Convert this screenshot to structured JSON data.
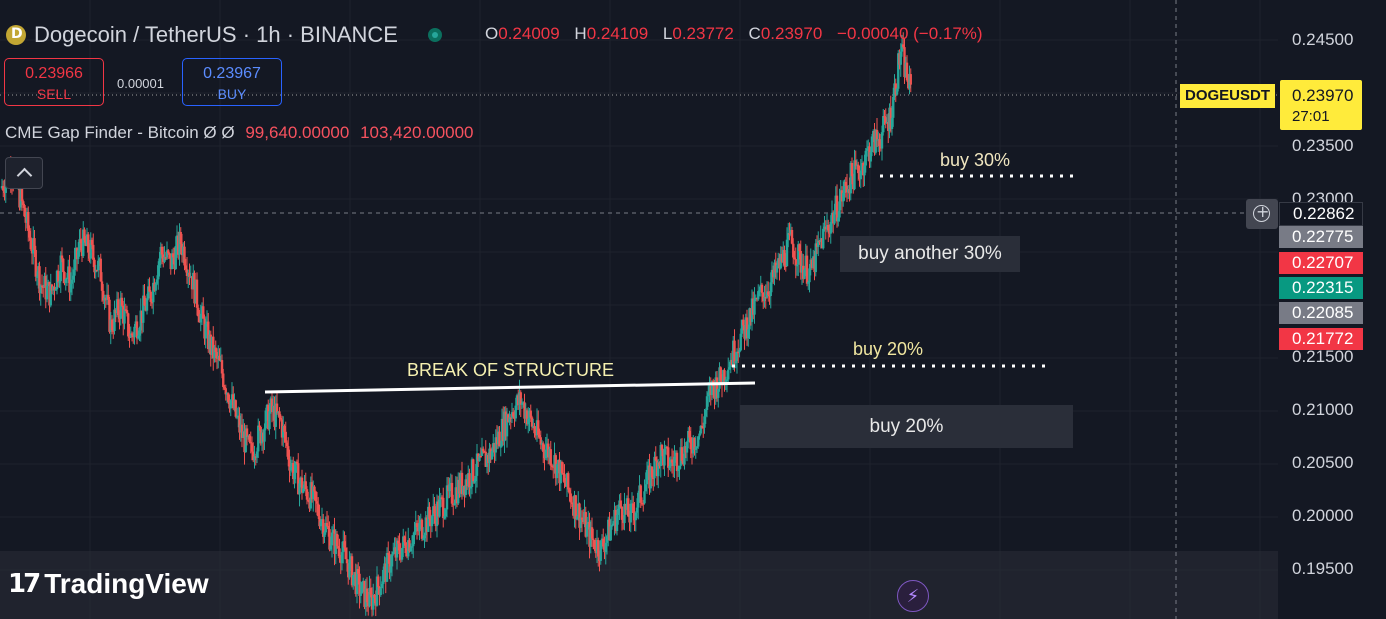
{
  "header": {
    "symbol_title": "Dogecoin / TetherUS · 1h · BINANCE",
    "coin_icon": "dogecoin-icon",
    "ohlc": [
      {
        "key": "O",
        "value": "0.24009"
      },
      {
        "key": "H",
        "value": "0.24109"
      },
      {
        "key": "L",
        "value": "0.23772"
      },
      {
        "key": "C",
        "value": "0.23970"
      },
      {
        "key": "",
        "value": "−0.00040 (−0.17%)"
      }
    ]
  },
  "trade": {
    "sell_price": "0.23966",
    "sell_label": "SELL",
    "spread": "0.00001",
    "buy_price": "0.23967",
    "buy_label": "BUY"
  },
  "indicator": {
    "name": "CME Gap Finder - Bitcoin",
    "settings": "Ø Ø",
    "value1": "99,640.00000",
    "value2": "103,420.00000"
  },
  "annotations": {
    "buy30": "buy 30%",
    "buy_another": "buy another 30%",
    "buy20_upper": "buy 20%",
    "bos": "BREAK OF STRUCTURE",
    "buy20_zone": "buy 20%"
  },
  "price_axis": {
    "ticks": [
      "0.24500",
      "0.23500",
      "0.23000",
      "0.21500",
      "0.21000",
      "0.20500",
      "0.20000",
      "0.19500"
    ],
    "ticker_label": "DOGEUSDT",
    "last_price": "0.23970",
    "countdown": "27:01",
    "crosshair_price": "0.22862",
    "tags": [
      {
        "value": "0.22775",
        "color": "#787b86"
      },
      {
        "value": "0.22707",
        "color": "#f23645"
      },
      {
        "value": "0.22315",
        "color": "#089981"
      },
      {
        "value": "0.22085",
        "color": "#787b86"
      },
      {
        "value": "0.21772",
        "color": "#f23645"
      }
    ]
  },
  "branding": {
    "logo_text": "TradingView"
  },
  "colors": {
    "up": "#26a69a",
    "down": "#ef5350",
    "background": "#141823",
    "accent": "#ffeb3b"
  },
  "chart_data": {
    "type": "candlestick",
    "ylim": [
      0.1905,
      0.2475
    ],
    "x_ticks": [],
    "close_path": [
      0.231,
      0.233,
      0.23,
      0.226,
      0.222,
      0.221,
      0.224,
      0.222,
      0.226,
      0.225,
      0.223,
      0.218,
      0.22,
      0.217,
      0.219,
      0.221,
      0.225,
      0.224,
      0.226,
      0.223,
      0.219,
      0.216,
      0.214,
      0.211,
      0.208,
      0.206,
      0.208,
      0.21,
      0.209,
      0.205,
      0.203,
      0.202,
      0.2,
      0.198,
      0.197,
      0.195,
      0.193,
      0.192,
      0.194,
      0.196,
      0.197,
      0.198,
      0.199,
      0.2,
      0.201,
      0.202,
      0.203,
      0.204,
      0.205,
      0.206,
      0.208,
      0.21,
      0.211,
      0.209,
      0.207,
      0.206,
      0.204,
      0.202,
      0.2,
      0.198,
      0.197,
      0.199,
      0.201,
      0.2,
      0.202,
      0.204,
      0.206,
      0.205,
      0.206,
      0.207,
      0.208,
      0.212,
      0.213,
      0.215,
      0.217,
      0.219,
      0.221,
      0.222,
      0.224,
      0.226,
      0.224,
      0.223,
      0.226,
      0.228,
      0.23,
      0.232,
      0.233,
      0.235,
      0.236,
      0.238,
      0.244,
      0.24
    ]
  }
}
